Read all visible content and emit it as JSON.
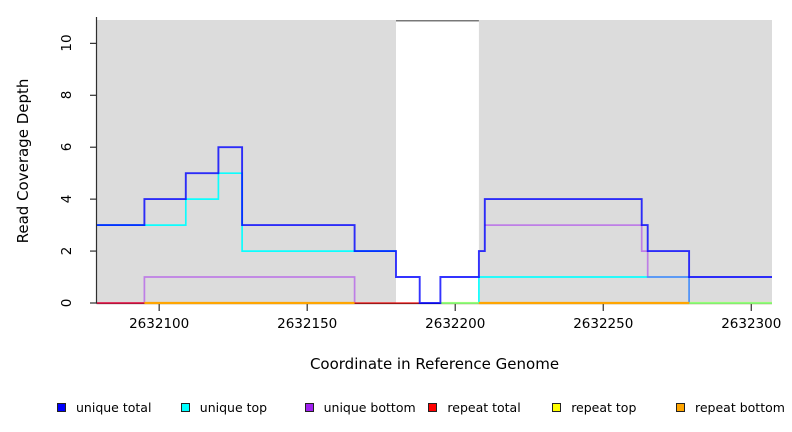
{
  "chart_data": {
    "type": "line",
    "subtype": "step-coverage",
    "title": "",
    "xlabel": "Coordinate in Reference Genome",
    "ylabel": "Read Coverage Depth",
    "xlim": [
      2632079,
      2632307
    ],
    "ylim": [
      0,
      10.9
    ],
    "x_ticks": [
      "2632100",
      "2632150",
      "2632200",
      "2632250",
      "2632300"
    ],
    "x_tick_values": [
      2632100,
      2632150,
      2632200,
      2632250,
      2632300
    ],
    "y_ticks": [
      "0",
      "2",
      "4",
      "6",
      "8",
      "10"
    ],
    "y_tick_values": [
      0,
      2,
      4,
      6,
      8,
      10
    ],
    "grid": false,
    "legend_position": "bottom",
    "panel_bg": "#DCDCDC",
    "axis_color": "#2f2f2f",
    "highlight_band": {
      "x_start": 2632180,
      "x_end": 2632208,
      "color": "#FFFFFF",
      "top_border_color": "#787878"
    },
    "series": [
      {
        "name": "unique total",
        "color": "#0000FF",
        "segments": [
          [
            [
              2632079,
              3
            ],
            [
              2632095,
              4
            ],
            [
              2632109,
              5
            ],
            [
              2632120,
              6
            ],
            [
              2632128,
              3
            ],
            [
              2632166,
              2
            ],
            [
              2632180,
              1
            ],
            [
              2632188,
              0
            ],
            [
              2632195,
              1
            ],
            [
              2632208,
              2
            ],
            [
              2632210,
              4
            ],
            [
              2632263,
              3
            ],
            [
              2632265,
              2
            ],
            [
              2632279,
              1
            ],
            [
              2632307,
              1
            ]
          ]
        ]
      },
      {
        "name": "unique top",
        "color": "#00FFFF",
        "segments": [
          [
            [
              2632079,
              3
            ],
            [
              2632109,
              4
            ],
            [
              2632120,
              5
            ],
            [
              2632128,
              2
            ],
            [
              2632180,
              2
            ]
          ],
          [
            [
              2632195,
              0
            ],
            [
              2632208,
              1
            ],
            [
              2632279,
              0
            ],
            [
              2632307,
              0
            ]
          ]
        ]
      },
      {
        "name": "unique bottom",
        "color": "#A020F0",
        "segments": [
          [
            [
              2632079,
              0
            ],
            [
              2632095,
              1
            ],
            [
              2632166,
              0
            ]
          ],
          [
            [
              2632210,
              3
            ],
            [
              2632263,
              2
            ],
            [
              2632265,
              1
            ],
            [
              2632279,
              0
            ]
          ]
        ]
      },
      {
        "name": "repeat total",
        "color": "#FF0000",
        "segments": [
          [
            [
              2632079,
              0
            ],
            [
              2632095,
              0
            ]
          ],
          [
            [
              2632166,
              0
            ],
            [
              2632188,
              0
            ]
          ]
        ]
      },
      {
        "name": "repeat top",
        "color": "#FFFF00",
        "segments": [
          [
            [
              2632195,
              0
            ],
            [
              2632208,
              0
            ]
          ],
          [
            [
              2632279,
              0
            ],
            [
              2632307,
              0
            ]
          ]
        ]
      },
      {
        "name": "repeat bottom",
        "color": "#FFA500",
        "segments": [
          [
            [
              2632095,
              0
            ],
            [
              2632166,
              0
            ]
          ],
          [
            [
              2632208,
              0
            ],
            [
              2632279,
              0
            ]
          ]
        ]
      }
    ]
  },
  "legend": {
    "items": [
      {
        "label": "unique total",
        "color": "#0000FF"
      },
      {
        "label": "unique top",
        "color": "#00FFFF"
      },
      {
        "label": "unique bottom",
        "color": "#A020F0"
      },
      {
        "label": "repeat total",
        "color": "#FF0000"
      },
      {
        "label": "repeat top",
        "color": "#FFFF00"
      },
      {
        "label": "repeat bottom",
        "color": "#FFA500"
      }
    ]
  }
}
